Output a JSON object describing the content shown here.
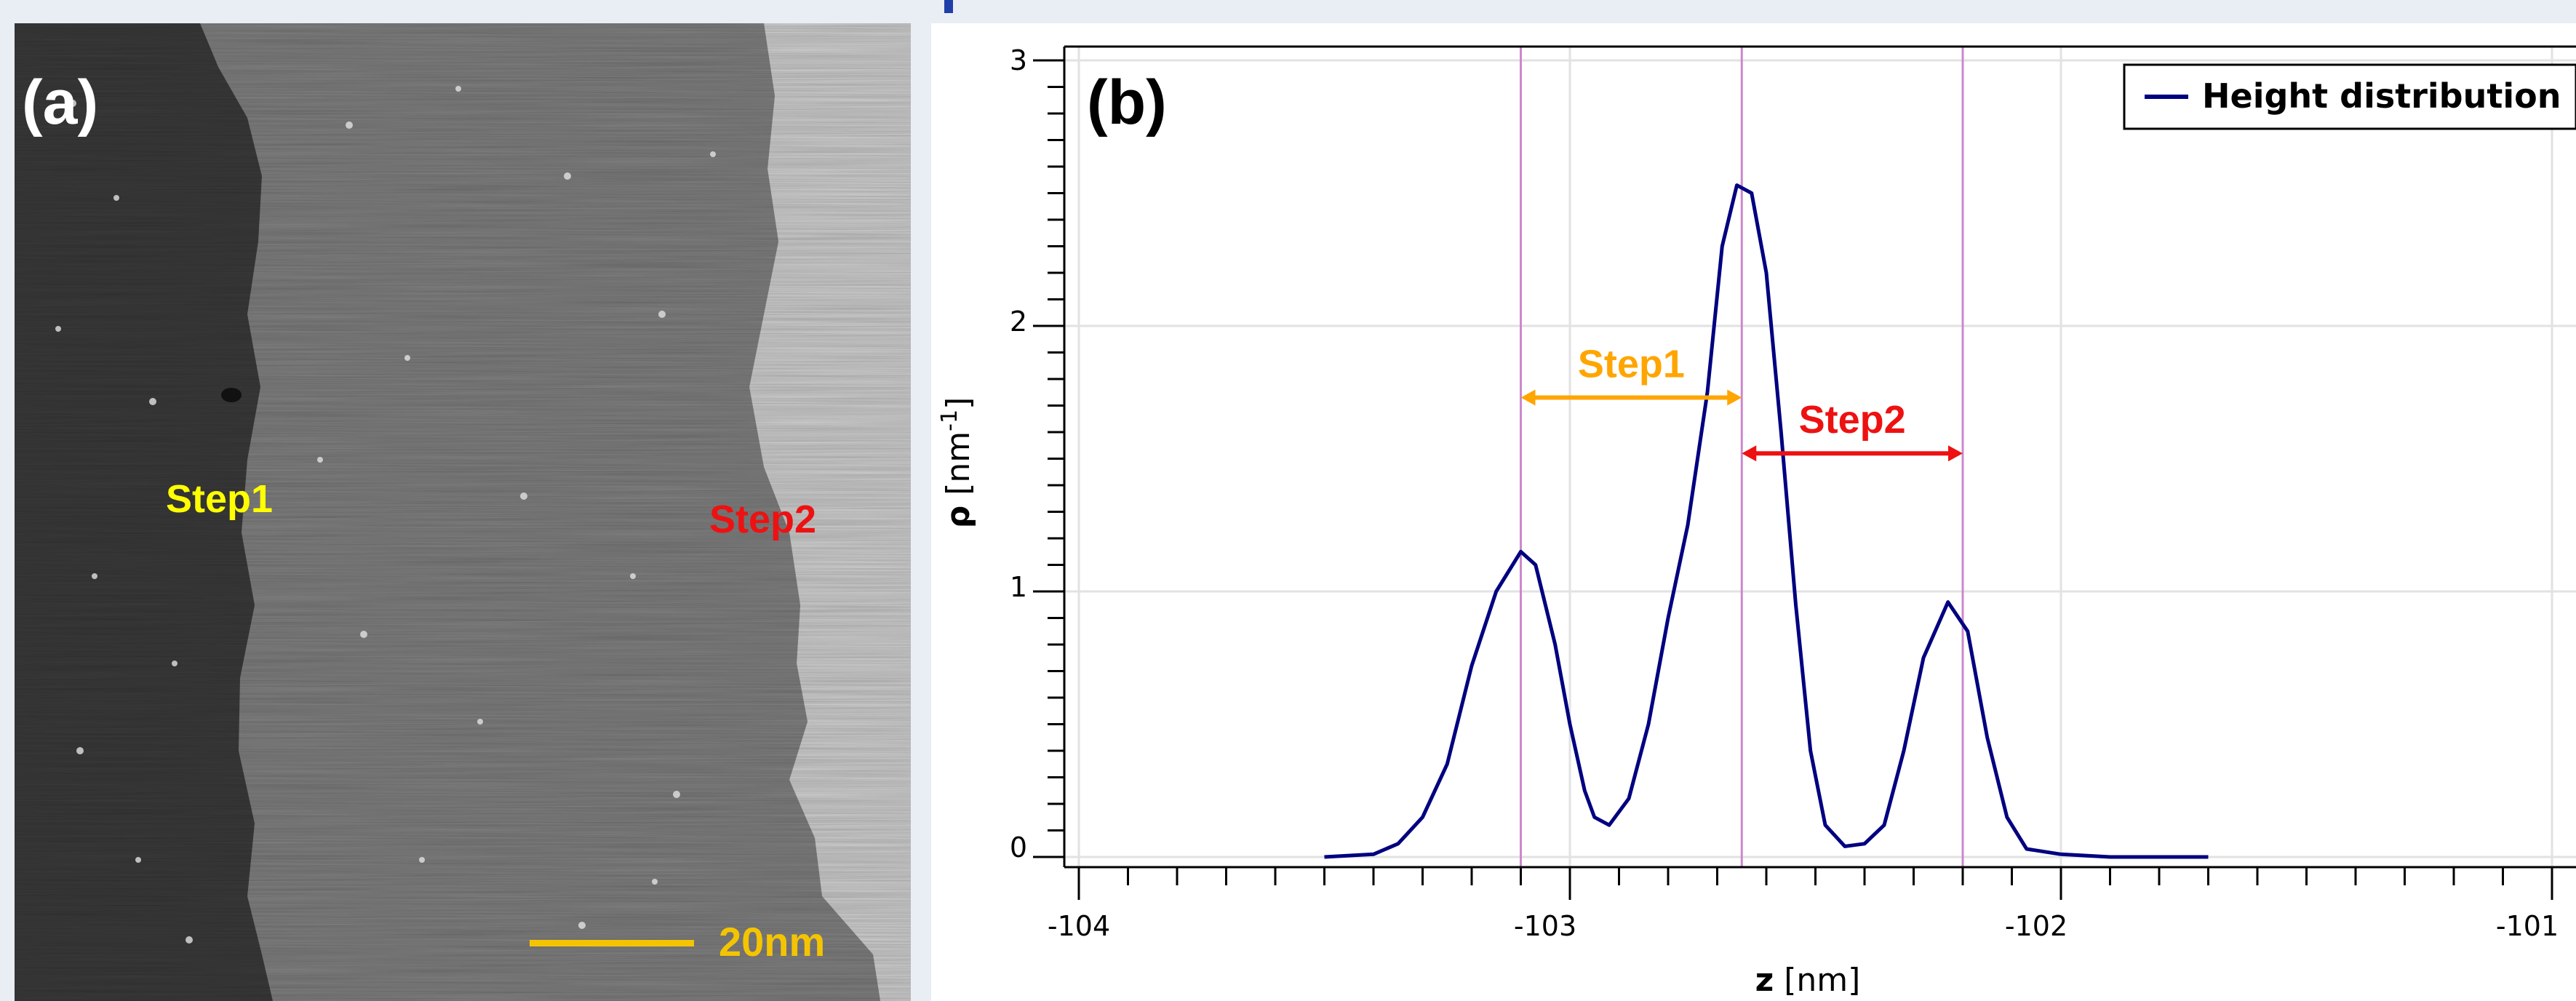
{
  "panel_a": {
    "label": "(a)",
    "step1_label": "Step1",
    "step2_label": "Step2",
    "scalebar_label": "20nm",
    "colors": {
      "step1": "#ffff00",
      "step2": "#ee1111",
      "scalebar": "#f5c400"
    }
  },
  "chart_data": {
    "type": "line",
    "panel_label": "(b)",
    "xlabel_symbol": "z",
    "xlabel_unit": "[nm]",
    "ylabel_symbol": "ρ",
    "ylabel_unit_pre": "[nm",
    "ylabel_unit_exp": "-1",
    "ylabel_unit_post": "]",
    "xlim": [
      -104,
      -101
    ],
    "ylim": [
      0,
      3
    ],
    "x_ticks": [
      -104,
      -103,
      -102,
      -101
    ],
    "x_tick_labels": [
      "-104",
      "-103",
      "-102",
      "-101"
    ],
    "y_ticks": [
      0,
      1,
      2,
      3
    ],
    "y_tick_labels": [
      "0",
      "1",
      "2",
      "3"
    ],
    "grid": true,
    "legend_position": "top-right",
    "series": [
      {
        "name": "Height distribution",
        "color": "#000080",
        "points": [
          [
            -103.5,
            0.0
          ],
          [
            -103.4,
            0.01
          ],
          [
            -103.35,
            0.05
          ],
          [
            -103.3,
            0.15
          ],
          [
            -103.25,
            0.35
          ],
          [
            -103.2,
            0.72
          ],
          [
            -103.15,
            1.0
          ],
          [
            -103.1,
            1.15
          ],
          [
            -103.07,
            1.1
          ],
          [
            -103.03,
            0.8
          ],
          [
            -103.0,
            0.5
          ],
          [
            -102.97,
            0.25
          ],
          [
            -102.95,
            0.15
          ],
          [
            -102.92,
            0.12
          ],
          [
            -102.88,
            0.22
          ],
          [
            -102.84,
            0.5
          ],
          [
            -102.8,
            0.9
          ],
          [
            -102.76,
            1.25
          ],
          [
            -102.72,
            1.75
          ],
          [
            -102.69,
            2.3
          ],
          [
            -102.66,
            2.53
          ],
          [
            -102.63,
            2.5
          ],
          [
            -102.6,
            2.2
          ],
          [
            -102.57,
            1.6
          ],
          [
            -102.54,
            0.95
          ],
          [
            -102.51,
            0.4
          ],
          [
            -102.48,
            0.12
          ],
          [
            -102.44,
            0.04
          ],
          [
            -102.4,
            0.05
          ],
          [
            -102.36,
            0.12
          ],
          [
            -102.32,
            0.4
          ],
          [
            -102.28,
            0.75
          ],
          [
            -102.23,
            0.96
          ],
          [
            -102.19,
            0.85
          ],
          [
            -102.15,
            0.45
          ],
          [
            -102.11,
            0.15
          ],
          [
            -102.07,
            0.03
          ],
          [
            -102.0,
            0.01
          ],
          [
            -101.9,
            0.0
          ],
          [
            -101.7,
            0.0
          ]
        ]
      }
    ],
    "vertical_markers": [
      -103.1,
      -102.65,
      -102.2
    ],
    "marker_color": "#cc88cc",
    "annotations": [
      {
        "text": "Step1",
        "from": -103.1,
        "to": -102.65,
        "y": 1.73,
        "color": "#ffa500"
      },
      {
        "text": "Step2",
        "from": -102.65,
        "to": -102.2,
        "y": 1.52,
        "color": "#ee1111"
      }
    ]
  }
}
